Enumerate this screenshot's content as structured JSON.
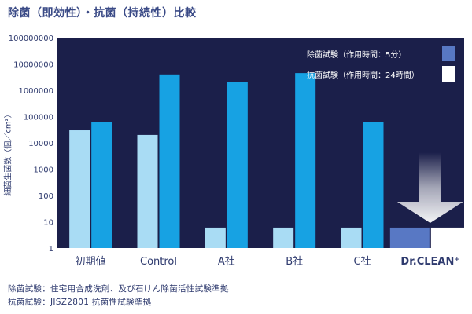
{
  "title": "除菌（即効性）・抗菌（持続性）比較",
  "ylabel": "細菌生菌数（個／cm²）",
  "footnotes": [
    "除菌試験：住宅用合成洗剤、及び石けん除菌活性試験準拠",
    "抗菌試験：JISZ2801 抗菌性試験準拠"
  ],
  "colors": {
    "plot_bg": "#1b1f4a",
    "series_1": "#a9dcf4",
    "series_2": "#17a2e3",
    "drclean_1": "#5878c4",
    "drclean_2": "#ffffff"
  },
  "chart_data": {
    "type": "bar",
    "categories": [
      "初期値",
      "Control",
      "A社",
      "B社",
      "C社",
      "Dr.CLEAN⁺"
    ],
    "yscale": "log",
    "ylim": [
      1,
      100000000
    ],
    "yticks": [
      "1",
      "10",
      "100",
      "1000",
      "10000",
      "100000",
      "1000000",
      "10000000",
      "100000000"
    ],
    "series": [
      {
        "name": "除菌試験（作用時間：5分）",
        "values": [
          30000,
          20000,
          6,
          6,
          6,
          6
        ]
      },
      {
        "name": "抗菌試験（作用時間：24時間）",
        "values": [
          60000,
          4000000,
          2000000,
          4500000,
          60000,
          6
        ]
      }
    ],
    "legend_position": "top-right",
    "grid": false
  }
}
